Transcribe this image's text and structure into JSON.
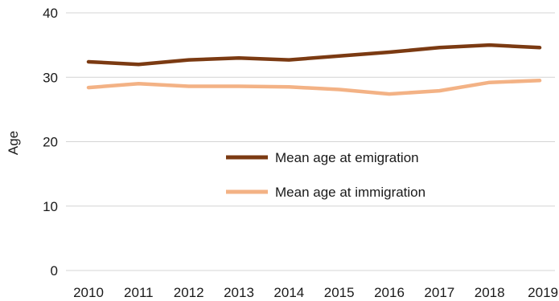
{
  "chart_data": {
    "type": "line",
    "title": "",
    "xlabel": "",
    "ylabel": "Age",
    "ylim": [
      0,
      40
    ],
    "yticks": [
      "0",
      "10",
      "20",
      "30",
      "40"
    ],
    "grid": true,
    "legend_position": "center",
    "categories": [
      "2010",
      "2011",
      "2012",
      "2013",
      "2014",
      "2015",
      "2016",
      "2017",
      "2018",
      "2019"
    ],
    "series": [
      {
        "name": "Mean age at emigration",
        "color": "#7b3a12",
        "values": [
          32.4,
          32.0,
          32.7,
          33.0,
          32.7,
          33.3,
          33.9,
          34.6,
          35.0,
          34.6
        ]
      },
      {
        "name": "Mean age at immigration",
        "color": "#f3b285",
        "values": [
          28.4,
          29.0,
          28.6,
          28.6,
          28.5,
          28.1,
          27.4,
          27.9,
          29.2,
          29.5
        ]
      }
    ]
  }
}
